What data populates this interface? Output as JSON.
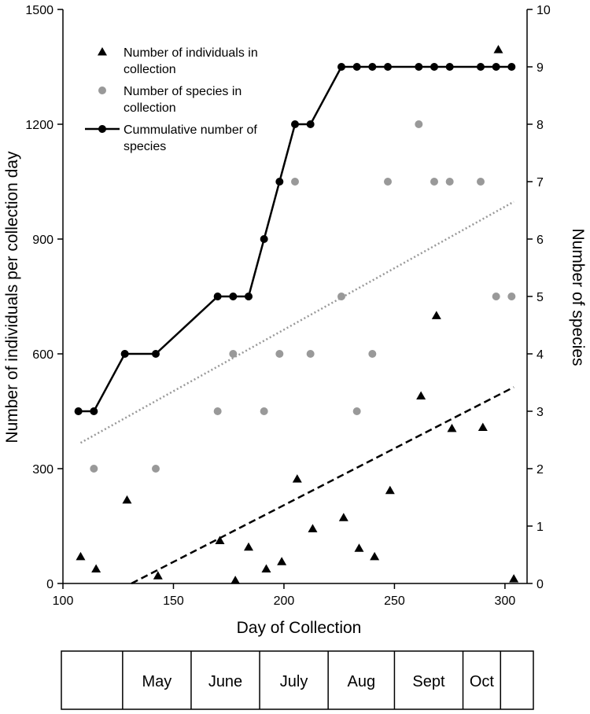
{
  "chart_data": {
    "type": "scatter",
    "xlabel": "Day of Collection",
    "ylabel_left": "Number of individuals per collection day",
    "ylabel_right": "Number of species",
    "xlim": [
      100,
      310
    ],
    "ylim_left": [
      0,
      1500
    ],
    "ylim_right": [
      0,
      10
    ],
    "xticks": [
      100,
      150,
      200,
      250,
      300
    ],
    "yticks_left": [
      0,
      300,
      600,
      900,
      1200,
      1500
    ],
    "yticks_right": [
      0,
      1,
      2,
      3,
      4,
      5,
      6,
      7,
      8,
      9,
      10
    ],
    "grid": false,
    "legend_position": "top-left",
    "legend": [
      {
        "label_line1": "Number of individuals in",
        "label_line2": "collection",
        "marker": "triangle",
        "color": "#000000"
      },
      {
        "label_line1": "Number of species in",
        "label_line2": "collection",
        "marker": "circle",
        "color": "#999999"
      },
      {
        "label_line1": "Cummulative number of",
        "label_line2": "species",
        "marker": "line-circle",
        "color": "#000000"
      }
    ],
    "series": [
      {
        "axis": "left",
        "marker": "triangle",
        "color": "#000000",
        "points": [
          [
            108,
            70
          ],
          [
            115,
            38
          ],
          [
            129,
            218
          ],
          [
            143,
            20
          ],
          [
            171,
            112
          ],
          [
            178,
            8
          ],
          [
            184,
            95
          ],
          [
            192,
            38
          ],
          [
            199,
            57
          ],
          [
            206,
            273
          ],
          [
            213,
            143
          ],
          [
            227,
            172
          ],
          [
            234,
            92
          ],
          [
            241,
            70
          ],
          [
            248,
            243
          ],
          [
            262,
            490
          ],
          [
            269,
            700
          ],
          [
            276,
            405
          ],
          [
            290,
            408
          ],
          [
            297,
            1395
          ],
          [
            304,
            12
          ]
        ]
      },
      {
        "axis": "right",
        "marker": "circle",
        "color": "#999999",
        "points": [
          [
            107,
            3
          ],
          [
            114,
            2
          ],
          [
            128,
            4
          ],
          [
            142,
            2
          ],
          [
            170,
            3
          ],
          [
            177,
            4
          ],
          [
            184,
            5
          ],
          [
            191,
            3
          ],
          [
            198,
            4
          ],
          [
            205,
            7
          ],
          [
            212,
            4
          ],
          [
            226,
            5
          ],
          [
            233,
            3
          ],
          [
            240,
            4
          ],
          [
            247,
            7
          ],
          [
            261,
            8
          ],
          [
            268,
            7
          ],
          [
            275,
            7
          ],
          [
            289,
            7
          ],
          [
            296,
            5
          ],
          [
            303,
            5
          ]
        ]
      },
      {
        "axis": "right",
        "marker": "line-circle",
        "color": "#000000",
        "points": [
          [
            107,
            3
          ],
          [
            114,
            3
          ],
          [
            128,
            4
          ],
          [
            142,
            4
          ],
          [
            170,
            5
          ],
          [
            177,
            5
          ],
          [
            184,
            5
          ],
          [
            191,
            6
          ],
          [
            198,
            7
          ],
          [
            205,
            8
          ],
          [
            212,
            8
          ],
          [
            226,
            9
          ],
          [
            233,
            9
          ],
          [
            240,
            9
          ],
          [
            247,
            9
          ],
          [
            261,
            9
          ],
          [
            268,
            9
          ],
          [
            275,
            9
          ],
          [
            289,
            9
          ],
          [
            296,
            9
          ],
          [
            303,
            9
          ]
        ]
      }
    ],
    "trendlines": [
      {
        "axis": "left",
        "style": "dashed",
        "color": "#000000",
        "from": [
          131,
          0
        ],
        "to": [
          304,
          513
        ]
      },
      {
        "axis": "right",
        "style": "dotted",
        "color": "#999999",
        "from": [
          108,
          2.45
        ],
        "to": [
          304,
          6.65
        ]
      }
    ],
    "month_strip": {
      "labels": [
        "",
        "May",
        "June",
        "July",
        "Aug",
        "Sept",
        "Oct",
        ""
      ],
      "boundaries": [
        97,
        127,
        158,
        189,
        220,
        250,
        281,
        298,
        304
      ]
    }
  }
}
